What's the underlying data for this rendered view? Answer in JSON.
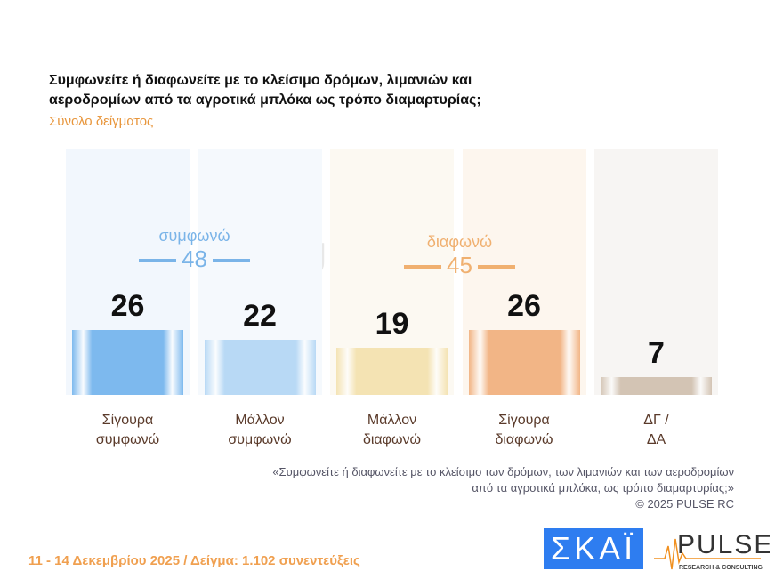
{
  "title": "Συμφωνείτε ή διαφωνείτε με το κλείσιμο δρόμων, λιμανιών και αεροδρομίων από τα αγροτικά μπλόκα ως τρόπο διαμαρτυρίας;",
  "subtitle": "Σύνολο δείγματος",
  "chart_data": {
    "type": "bar",
    "categories": [
      "Σίγουρα συμφωνώ",
      "Μάλλον συμφωνώ",
      "Μάλλον διαφωνώ",
      "Σίγουρα διαφωνώ",
      "ΔΓ / ΔΑ"
    ],
    "values": [
      26,
      22,
      19,
      26,
      7
    ],
    "colors": [
      "#7db9ee",
      "#b8d9f5",
      "#f4e3b3",
      "#f2b586",
      "#d3c4b4"
    ],
    "groups": [
      {
        "label": "συμφωνώ",
        "value": 48,
        "color": "#7ab4e8"
      },
      {
        "label": "διαφωνώ",
        "value": 45,
        "color": "#f0b070"
      }
    ]
  },
  "quote": [
    "«Συμφωνείτε ή διαφωνείτε με το κλείσιμο των δρόμων, των λιμανιών και των αεροδρομίων",
    "από τα αγροτικά μπλόκα, ως τρόπο διαμαρτυρίας;»",
    "©  2025  PULSE RC"
  ],
  "footer": "11 - 14 Δεκεμβρίου 2025  /  Δείγμα:  1.102 συνεντεύξεις",
  "logos": {
    "skai": "ΣΚΑΪ",
    "pulse": "PULSE",
    "pulse_sub": "RESEARCH & CONSULTING",
    "watermark": "PULSE"
  }
}
